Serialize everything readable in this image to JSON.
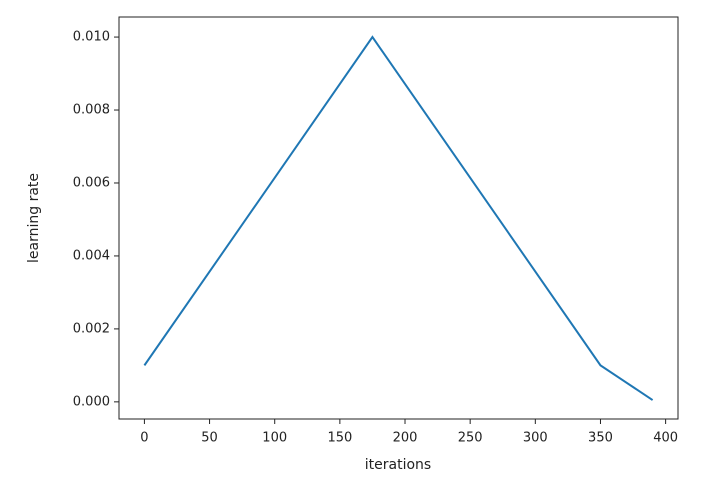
{
  "chart_data": {
    "type": "line",
    "x_label": "iterations",
    "y_label": "learning rate",
    "series": [
      {
        "name": "learning rate",
        "color": "#1f77b4",
        "x": [
          0,
          175,
          350,
          390
        ],
        "values": [
          0.001,
          0.01,
          0.001,
          5e-05
        ]
      }
    ],
    "xlim": [
      -19.5,
      409.5
    ],
    "xticks": [
      0,
      50,
      100,
      150,
      200,
      250,
      300,
      350,
      400
    ],
    "ylim": [
      -0.00047,
      0.01055
    ],
    "yticks": [
      {
        "value": 0,
        "label": "0.000"
      },
      {
        "value": 0.002,
        "label": "0.002"
      },
      {
        "value": 0.004,
        "label": "0.004"
      },
      {
        "value": 0.006,
        "label": "0.006"
      },
      {
        "value": 0.008,
        "label": "0.008"
      },
      {
        "value": 0.01,
        "label": "0.010"
      }
    ],
    "grid": false
  }
}
